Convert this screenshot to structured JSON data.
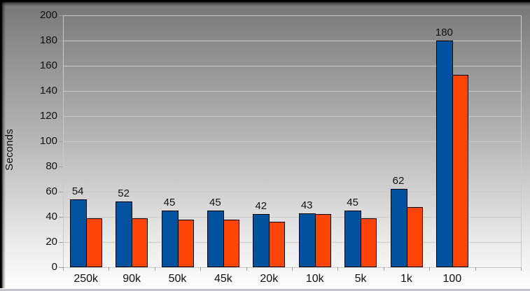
{
  "chart_data": {
    "type": "bar",
    "title": "",
    "ylabel": "Seconds",
    "xlabel": "",
    "ylim": [
      0,
      200
    ],
    "ytick_step": 20,
    "grid": true,
    "legend": "none",
    "categories": [
      "250k",
      "90k",
      "50k",
      "45k",
      "20k",
      "10k",
      "5k",
      "1k",
      "100"
    ],
    "x_slot_count": 10,
    "series": [
      {
        "name": "series-blue",
        "color": "#00519e",
        "values": [
          54,
          52,
          45,
          45,
          42,
          43,
          45,
          62,
          180
        ],
        "data_labels": true
      },
      {
        "name": "series-orange",
        "color": "#fd4503",
        "values": [
          39,
          39,
          38,
          38,
          36,
          42,
          39,
          48,
          153
        ],
        "data_labels": false
      }
    ],
    "data_label_values": [
      "54",
      "52",
      "45",
      "45",
      "42",
      "43",
      "45",
      "62",
      "180"
    ],
    "gridline_color": "#c9c9c9",
    "bar_border_color": "#000000",
    "x_axis_title_fragment": "visible-partial-glyph"
  }
}
